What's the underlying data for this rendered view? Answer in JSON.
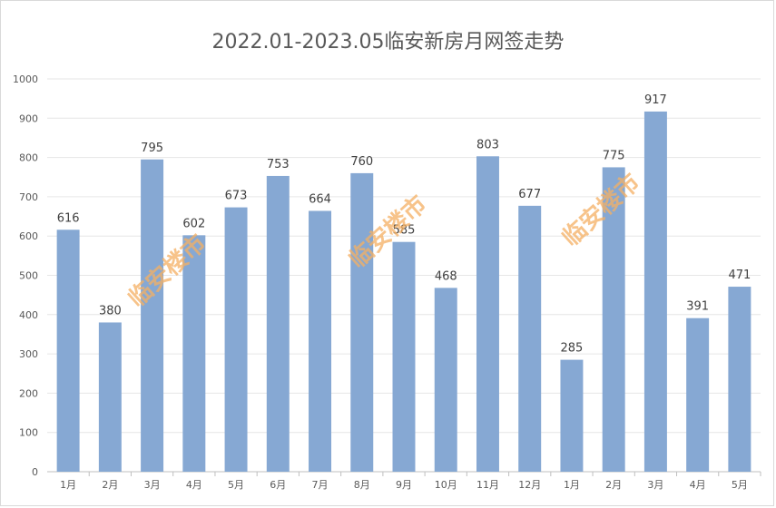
{
  "chart_data": {
    "type": "bar",
    "title": "2022.01-2023.05临安新房月网签走势",
    "categories": [
      "1月",
      "2月",
      "3月",
      "4月",
      "5月",
      "6月",
      "7月",
      "8月",
      "9月",
      "10月",
      "11月",
      "12月",
      "1月",
      "2月",
      "3月",
      "4月",
      "5月"
    ],
    "values": [
      616,
      380,
      795,
      602,
      673,
      753,
      664,
      760,
      585,
      468,
      803,
      677,
      285,
      775,
      917,
      391,
      471
    ],
    "ylim": [
      0,
      1000
    ],
    "yticks": [
      0,
      100,
      200,
      300,
      400,
      500,
      600,
      700,
      800,
      900,
      1000
    ],
    "grid": true,
    "bar_color": "#86a8d3",
    "watermark_text": "临安楼市"
  }
}
